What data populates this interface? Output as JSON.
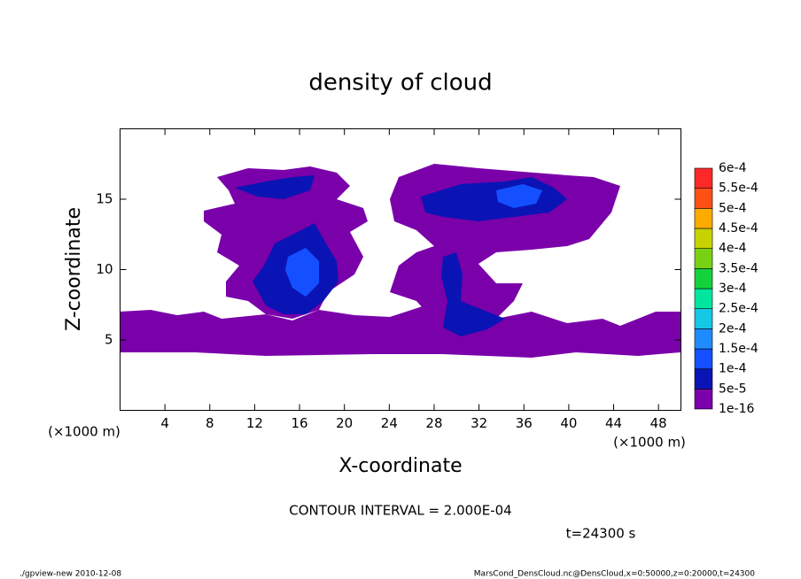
{
  "chart_data": {
    "type": "contour",
    "title": "density of cloud",
    "x_label": "X-coordinate",
    "y_label": "Z-coordinate",
    "x_unit": "(×1000 m)",
    "xlim": [
      0,
      50
    ],
    "xticks": [
      4,
      8,
      12,
      16,
      20,
      24,
      28,
      32,
      36,
      40,
      44,
      48
    ],
    "ylim": [
      0,
      20
    ],
    "yticks": [
      5,
      10,
      15
    ],
    "levels": [
      {
        "value": 1e-16,
        "label": "1e-16"
      },
      {
        "value": 5e-05,
        "label": "5e-5"
      },
      {
        "value": 0.0001,
        "label": "1e-4"
      },
      {
        "value": 0.00015,
        "label": "1.5e-4"
      },
      {
        "value": 0.0002,
        "label": "2e-4"
      },
      {
        "value": 0.00025,
        "label": "2.5e-4"
      },
      {
        "value": 0.0003,
        "label": "3e-4"
      },
      {
        "value": 0.00035,
        "label": "3.5e-4"
      },
      {
        "value": 0.0004,
        "label": "4e-4"
      },
      {
        "value": 0.00045,
        "label": "4.5e-4"
      },
      {
        "value": 0.0005,
        "label": "5e-4"
      },
      {
        "value": 0.00055,
        "label": "5.5e-4"
      },
      {
        "value": 0.0006,
        "label": "6e-4"
      }
    ],
    "level_colors": [
      "#7a00aa",
      "#0a14b4",
      "#1450ff",
      "#1e8cff",
      "#14c8e6",
      "#00e6a0",
      "#14d23c",
      "#78d214",
      "#c8d200",
      "#ffaa00",
      "#ff5014",
      "#ff2828",
      "#ff8c8c"
    ],
    "contour_interval": "CONTOUR INTERVAL = 2.000E-04",
    "time_label": "t=24300 s",
    "footer_left": "./gpview-new  2010-12-08",
    "footer_right": "MarsCond_DensCloud.nc@DensCloud,x=0:50000,z=0:20000,t=24300"
  }
}
